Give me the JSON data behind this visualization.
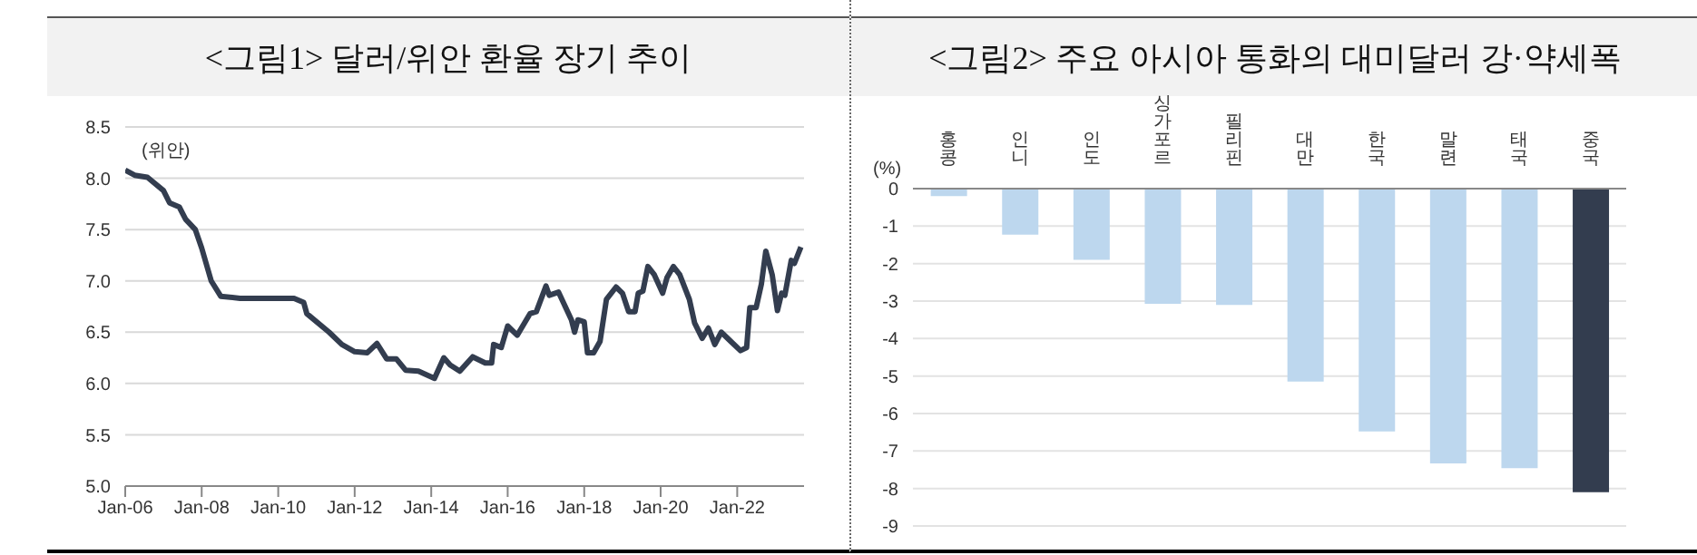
{
  "chart_data": [
    {
      "type": "line",
      "title": "<그림1> 달러/위안 환율 장기 추이",
      "ylabel": "(위안)",
      "x": [
        "2006-01",
        "2006-04",
        "2006-08",
        "2007-01",
        "2007-03",
        "2007-06",
        "2007-08",
        "2007-11",
        "2008-01",
        "2008-04",
        "2008-07",
        "2009-01",
        "2010-06",
        "2010-09",
        "2010-10",
        "2011-05",
        "2011-09",
        "2012-01",
        "2012-05",
        "2012-08",
        "2012-11",
        "2013-02",
        "2013-05",
        "2013-09",
        "2014-02",
        "2014-05",
        "2014-07",
        "2014-10",
        "2015-02",
        "2015-06",
        "2015-08-01",
        "2015-08-20",
        "2015-11",
        "2016-01",
        "2016-04",
        "2016-08",
        "2016-10",
        "2017-01",
        "2017-02",
        "2017-05",
        "2017-09",
        "2017-10",
        "2017-11",
        "2018-01",
        "2018-02",
        "2018-04",
        "2018-06",
        "2018-08",
        "2018-11",
        "2019-01",
        "2019-03",
        "2019-05",
        "2019-06",
        "2019-07-15",
        "2019-09",
        "2019-11",
        "2020-01-20",
        "2020-03",
        "2020-05",
        "2020-07",
        "2020-10",
        "2020-11-20",
        "2021-02",
        "2021-04",
        "2021-06",
        "2021-08",
        "2021-11",
        "2022-02",
        "2022-04",
        "2022-05",
        "2022-07",
        "2022-08-20",
        "2022-10",
        "2022-12",
        "2023-01-20",
        "2023-03",
        "2023-04",
        "2023-06",
        "2023-07",
        "2023-09"
      ],
      "series": [
        {
          "color": "#333d4f",
          "values": [
            8.08,
            8.03,
            8.01,
            7.88,
            7.76,
            7.72,
            7.6,
            7.5,
            7.32,
            7.0,
            6.85,
            6.83,
            6.83,
            6.79,
            6.68,
            6.5,
            6.38,
            6.31,
            6.3,
            6.39,
            6.24,
            6.24,
            6.13,
            6.12,
            6.05,
            6.25,
            6.18,
            6.12,
            6.26,
            6.2,
            6.2,
            6.38,
            6.35,
            6.56,
            6.47,
            6.68,
            6.7,
            6.95,
            6.86,
            6.89,
            6.62,
            6.5,
            6.62,
            6.6,
            6.3,
            6.3,
            6.41,
            6.82,
            6.94,
            6.88,
            6.7,
            6.7,
            6.88,
            6.9,
            7.14,
            7.06,
            6.88,
            7.03,
            7.14,
            7.06,
            6.82,
            6.59,
            6.44,
            6.54,
            6.38,
            6.5,
            6.41,
            6.32,
            6.35,
            6.74,
            6.74,
            6.97,
            7.29,
            7.06,
            6.71,
            6.88,
            6.86,
            7.2,
            7.17,
            7.33
          ]
        }
      ],
      "xlim": [
        "2006-01",
        "2023-10"
      ],
      "xticks": [
        {
          "value": "2006-01",
          "label": "Jan-06"
        },
        {
          "value": "2008-01",
          "label": "Jan-08"
        },
        {
          "value": "2010-01",
          "label": "Jan-10"
        },
        {
          "value": "2012-01",
          "label": "Jan-12"
        },
        {
          "value": "2014-01",
          "label": "Jan-14"
        },
        {
          "value": "2016-01",
          "label": "Jan-16"
        },
        {
          "value": "2018-01",
          "label": "Jan-18"
        },
        {
          "value": "2020-01",
          "label": "Jan-20"
        },
        {
          "value": "2022-01",
          "label": "Jan-22"
        }
      ],
      "ylim": [
        5,
        8.5
      ],
      "yticks": [
        {
          "value": 5,
          "label": "5.0"
        },
        5.5,
        {
          "value": 6,
          "label": "6.0"
        },
        6.5,
        {
          "value": 7,
          "label": "7.0"
        },
        7.5,
        {
          "value": 8,
          "label": "8.0"
        },
        8.5
      ],
      "grid": "y"
    },
    {
      "type": "bar",
      "title": "<그림2> 주요 아시아 통화의 대미달러 강·약세폭",
      "ylabel": "(%)",
      "categories": [
        "홍콩",
        "인니",
        "인도",
        "싱가포르",
        "필리핀",
        "대만",
        "한국",
        "말련",
        "태국",
        "중국"
      ],
      "values": [
        -0.2,
        -1.23,
        -1.9,
        -3.07,
        -3.1,
        -5.15,
        -6.48,
        -7.33,
        -7.46,
        -8.1
      ],
      "colors": [
        "#bdd7ee",
        "#bdd7ee",
        "#bdd7ee",
        "#bdd7ee",
        "#bdd7ee",
        "#bdd7ee",
        "#bdd7ee",
        "#bdd7ee",
        "#bdd7ee",
        "#333d4f"
      ],
      "ylim": [
        -9,
        0
      ],
      "yticks": [
        0,
        -1,
        -2,
        -3,
        -4,
        -5,
        -6,
        -7,
        -8,
        -9
      ],
      "grid": "y"
    }
  ]
}
